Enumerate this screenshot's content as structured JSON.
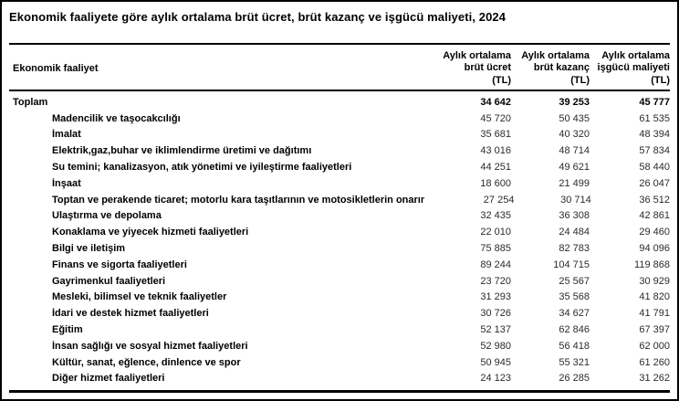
{
  "title": "Ekonomik faaliyete göre aylık ortalama brüt ücret, brüt kazanç ve işgücü maliyeti, 2024",
  "table": {
    "row_header": "Ekonomik faaliyet",
    "columns": [
      {
        "text": "Aylık ortalama\nbrüt ücret\n(TL)"
      },
      {
        "text": "Aylık ortalama\nbrüt kazanç\n(TL)"
      },
      {
        "text": "Aylık ortalama\nişgücü maliyeti\n(TL)"
      }
    ],
    "rows": [
      {
        "label": "Toplam",
        "total": true,
        "values": [
          "34 642",
          "39 253",
          "45 777"
        ]
      },
      {
        "label": "Madencilik ve taşocakcılığı",
        "total": false,
        "values": [
          "45 720",
          "50 435",
          "61 535"
        ]
      },
      {
        "label": "İmalat",
        "total": false,
        "values": [
          "35 681",
          "40 320",
          "48 394"
        ]
      },
      {
        "label": "Elektrik,gaz,buhar ve iklimlendirme üretimi ve dağıtımı",
        "total": false,
        "values": [
          "43 016",
          "48 714",
          "57 834"
        ]
      },
      {
        "label": "Su temini; kanalizasyon, atık yönetimi ve iyileştirme faaliyetleri",
        "total": false,
        "values": [
          "44 251",
          "49 621",
          "58 440"
        ]
      },
      {
        "label": "İnşaat",
        "total": false,
        "values": [
          "18 600",
          "21 499",
          "26 047"
        ]
      },
      {
        "label": "Toptan ve perakende ticaret; motorlu kara taşıtlarının ve motosikletlerin onarımı",
        "total": false,
        "values": [
          "27 254",
          "30 714",
          "36 512"
        ]
      },
      {
        "label": "Ulaştırma ve depolama",
        "total": false,
        "values": [
          "32 435",
          "36 308",
          "42 861"
        ]
      },
      {
        "label": "Konaklama ve yiyecek hizmeti faaliyetleri",
        "total": false,
        "values": [
          "22 010",
          "24 484",
          "29 460"
        ]
      },
      {
        "label": "Bilgi ve iletişim",
        "total": false,
        "values": [
          "75 885",
          "82 783",
          "94 096"
        ]
      },
      {
        "label": "Finans ve sigorta faaliyetleri",
        "total": false,
        "values": [
          "89 244",
          "104 715",
          "119 868"
        ]
      },
      {
        "label": "Gayrimenkul faaliyetleri",
        "total": false,
        "values": [
          "23 720",
          "25 567",
          "30 929"
        ]
      },
      {
        "label": "Mesleki, bilimsel ve teknik faaliyetler",
        "total": false,
        "values": [
          "31 293",
          "35 568",
          "41 820"
        ]
      },
      {
        "label": "İdari ve destek hizmet faaliyetleri",
        "total": false,
        "values": [
          "30 726",
          "34 627",
          "41 791"
        ]
      },
      {
        "label": "Eğitim",
        "total": false,
        "values": [
          "52 137",
          "62 846",
          "67 397"
        ]
      },
      {
        "label": "İnsan sağlığı ve sosyal hizmet faaliyetleri",
        "total": false,
        "values": [
          "52 980",
          "56 418",
          "62 000"
        ]
      },
      {
        "label": "Kültür, sanat, eğlence, dinlence ve spor",
        "total": false,
        "values": [
          "50 945",
          "55 321",
          "61 260"
        ]
      },
      {
        "label": "Diğer hizmet faaliyetleri",
        "total": false,
        "values": [
          "24 123",
          "26 285",
          "31 262"
        ]
      }
    ]
  }
}
